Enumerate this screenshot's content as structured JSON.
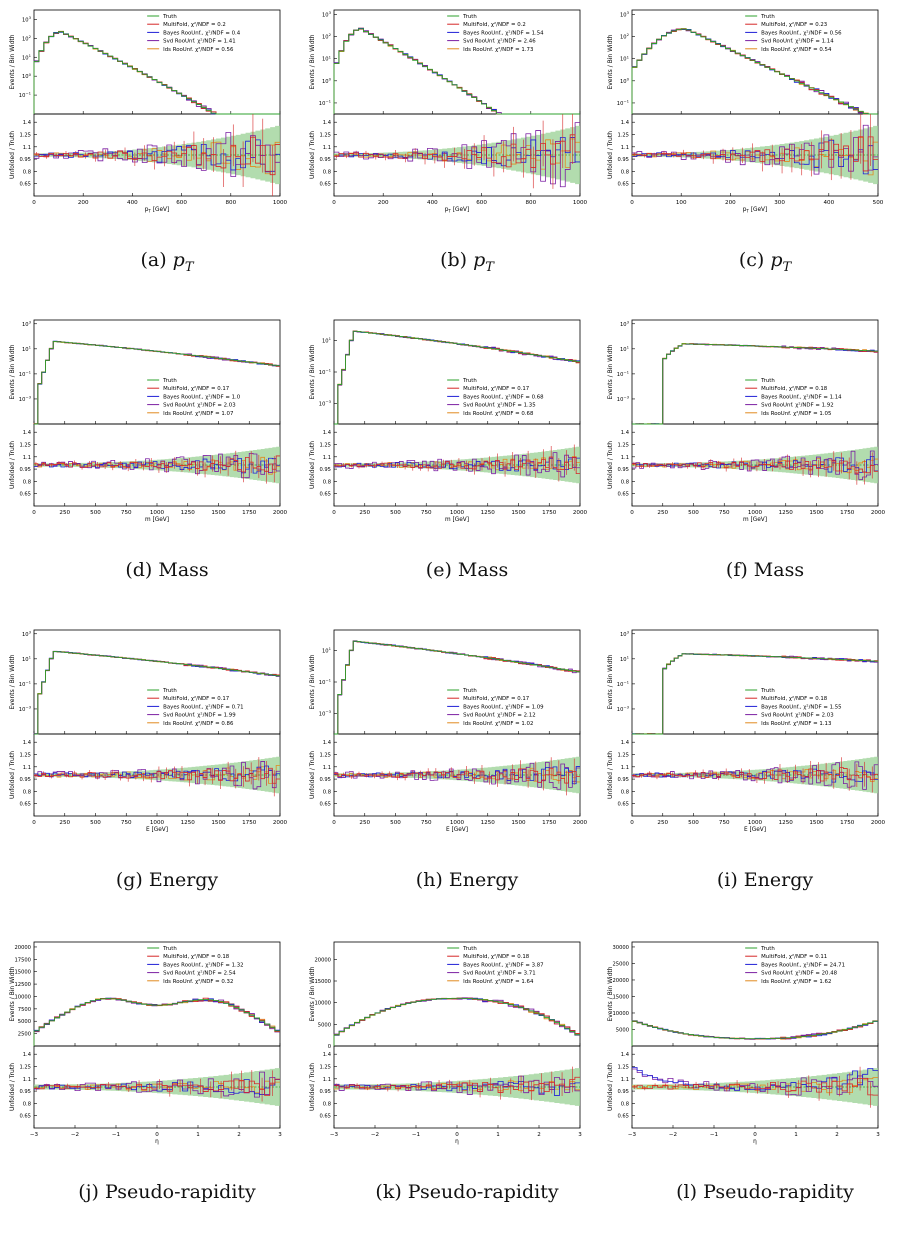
{
  "colors": {
    "truth": "#2ca02c",
    "multifold": "#d62728",
    "bayes": "#1f1fd6",
    "svd": "#7b1fa2",
    "ids": "#e08a1e",
    "band": "#9fd39a"
  },
  "chart_data": [
    {
      "id": "a",
      "type": "line",
      "caption_label": "(a) ",
      "caption_var": "p",
      "caption_sub": "T",
      "variable": "pt",
      "xlabel": "p_T [GeV]",
      "ylabel_top": "Events / Bin Width",
      "ylabel_bottom": "Unfolded / Truth",
      "xlim": [
        0,
        1000
      ],
      "xticks": [
        "0",
        "200",
        "400",
        "600",
        "800",
        "1000"
      ],
      "xtick_values": [
        0,
        200,
        400,
        600,
        800,
        1000
      ],
      "yscale": "log",
      "yticks": [
        "10^3",
        "10^2",
        "10^1",
        "10^0",
        "10^-1"
      ],
      "ylog_range": [
        -2,
        3.5
      ],
      "ratio_ticks": [
        "1.4",
        "1.25",
        "1.1",
        "0.95",
        "0.8",
        "0.65"
      ],
      "ratio_range": [
        0.5,
        1.5
      ],
      "legend_pos": "top-right",
      "series": [
        {
          "name": "Truth"
        },
        {
          "name": "MultiFold, χ²/NDF = 0.2"
        },
        {
          "name": "Bayes RooUnf., χ²/NDF = 0.4"
        },
        {
          "name": "Svd RooUnf. χ²/NDF = 1.41"
        },
        {
          "name": "Ids RooUnf. χ²/NDF = 0.56"
        }
      ]
    },
    {
      "id": "b",
      "type": "line",
      "caption_label": "(b) ",
      "caption_var": "p",
      "caption_sub": "T",
      "variable": "pt",
      "xlabel": "p_T [GeV]",
      "ylabel_top": "Events / Bin Width",
      "ylabel_bottom": "Unfolded / Truth",
      "xlim": [
        0,
        1000
      ],
      "xticks": [
        "0",
        "200",
        "400",
        "600",
        "800",
        "1000"
      ],
      "xtick_values": [
        0,
        200,
        400,
        600,
        800,
        1000
      ],
      "yscale": "log",
      "yticks": [
        "10^3",
        "10^2",
        "10^1",
        "10^0",
        "10^-1"
      ],
      "ylog_range": [
        -1.5,
        3.2
      ],
      "ratio_ticks": [
        "1.4",
        "1.25",
        "1.1",
        "0.95",
        "0.8",
        "0.65"
      ],
      "ratio_range": [
        0.5,
        1.5
      ],
      "legend_pos": "top-right",
      "series": [
        {
          "name": "Truth"
        },
        {
          "name": "MultiFold, χ²/NDF = 0.2"
        },
        {
          "name": "Bayes RooUnf., χ²/NDF = 1.54"
        },
        {
          "name": "Svd RooUnf. χ²/NDF = 2.46"
        },
        {
          "name": "Ids RooUnf. χ²/NDF = 1.73"
        }
      ]
    },
    {
      "id": "c",
      "type": "line",
      "caption_label": "(c) ",
      "caption_var": "p",
      "caption_sub": "T",
      "variable": "pt2",
      "xlabel": "p_T [GeV]",
      "ylabel_top": "Events / Bin Width",
      "ylabel_bottom": "Unfolded / Truth",
      "xlim": [
        0,
        500
      ],
      "xticks": [
        "0",
        "100",
        "200",
        "300",
        "400",
        "500"
      ],
      "xtick_values": [
        0,
        100,
        200,
        300,
        400,
        500
      ],
      "yscale": "log",
      "yticks": [
        "10^3",
        "10^2",
        "10^1",
        "10^0",
        "10^-1"
      ],
      "ylog_range": [
        -1.5,
        3.2
      ],
      "ratio_ticks": [
        "1.4",
        "1.25",
        "1.1",
        "0.95",
        "0.8",
        "0.65"
      ],
      "ratio_range": [
        0.5,
        1.5
      ],
      "legend_pos": "top-right",
      "series": [
        {
          "name": "Truth"
        },
        {
          "name": "MultiFold, χ²/NDF = 0.23"
        },
        {
          "name": "Bayes RooUnf., χ²/NDF = 0.56"
        },
        {
          "name": "Svd RooUnf. χ²/NDF = 1.14"
        },
        {
          "name": "Ids RooUnf. χ²/NDF = 0.54"
        }
      ]
    },
    {
      "id": "d",
      "type": "line",
      "caption_label": "(d) Mass",
      "caption_var": "",
      "caption_sub": "",
      "variable": "mass",
      "xlabel": "m [GeV]",
      "ylabel_top": "Events / Bin Width",
      "ylabel_bottom": "Unfolded / Truth",
      "xlim": [
        0,
        2000
      ],
      "xticks": [
        "0",
        "250",
        "500",
        "750",
        "1000",
        "1250",
        "1500",
        "1750",
        "2000"
      ],
      "xtick_values": [
        0,
        250,
        500,
        750,
        1000,
        1250,
        1500,
        1750,
        2000
      ],
      "yscale": "log",
      "yticks": [
        "10^3",
        "10^1",
        "10^-1",
        "10^-3"
      ],
      "ylog_range": [
        -5,
        3.3
      ],
      "ratio_ticks": [
        "1.4",
        "1.25",
        "1.1",
        "0.95",
        "0.8",
        "0.65"
      ],
      "ratio_range": [
        0.5,
        1.5
      ],
      "legend_pos": "lower-right",
      "series": [
        {
          "name": "Truth"
        },
        {
          "name": "MultiFold, χ²/NDF = 0.17"
        },
        {
          "name": "Bayes RooUnf., χ²/NDF = 1.0"
        },
        {
          "name": "Svd RooUnf. χ²/NDF = 2.03"
        },
        {
          "name": "Ids RooUnf. χ²/NDF = 1.07"
        }
      ]
    },
    {
      "id": "e",
      "type": "line",
      "caption_label": "(e) Mass",
      "caption_var": "",
      "caption_sub": "",
      "variable": "mass",
      "xlabel": "m [GeV]",
      "ylabel_top": "Events / Bin Width",
      "ylabel_bottom": "Unfolded / Truth",
      "xlim": [
        0,
        2000
      ],
      "xticks": [
        "0",
        "250",
        "500",
        "750",
        "1000",
        "1250",
        "1500",
        "1750",
        "2000"
      ],
      "xtick_values": [
        0,
        250,
        500,
        750,
        1000,
        1250,
        1500,
        1750,
        2000
      ],
      "yscale": "log",
      "yticks": [
        "10^1",
        "10^-1",
        "10^-3"
      ],
      "ylog_range": [
        -4.3,
        2.3
      ],
      "ratio_ticks": [
        "1.4",
        "1.25",
        "1.1",
        "0.95",
        "0.8",
        "0.65"
      ],
      "ratio_range": [
        0.5,
        1.5
      ],
      "legend_pos": "lower-right",
      "series": [
        {
          "name": "Truth"
        },
        {
          "name": "MultiFold, χ²/NDF = 0.17"
        },
        {
          "name": "Bayes RooUnf., χ²/NDF = 0.68"
        },
        {
          "name": "Svd RooUnf. χ²/NDF = 1.35"
        },
        {
          "name": "Ids RooUnf. χ²/NDF = 0.68"
        }
      ]
    },
    {
      "id": "f",
      "type": "line",
      "caption_label": "(f) Mass",
      "caption_var": "",
      "caption_sub": "",
      "variable": "mass2",
      "xlabel": "m [GeV]",
      "ylabel_top": "Events / Bin Width",
      "ylabel_bottom": "Unfolded / Truth",
      "xlim": [
        0,
        2000
      ],
      "xticks": [
        "0",
        "250",
        "500",
        "750",
        "1000",
        "1250",
        "1500",
        "1750",
        "2000"
      ],
      "xtick_values": [
        0,
        250,
        500,
        750,
        1000,
        1250,
        1500,
        1750,
        2000
      ],
      "yscale": "log",
      "yticks": [
        "10^3",
        "10^1",
        "10^-1",
        "10^-3"
      ],
      "ylog_range": [
        -5,
        3.3
      ],
      "ratio_ticks": [
        "1.4",
        "1.25",
        "1.1",
        "0.95",
        "0.8",
        "0.65"
      ],
      "ratio_range": [
        0.5,
        1.5
      ],
      "legend_pos": "lower-right",
      "series": [
        {
          "name": "Truth"
        },
        {
          "name": "MultiFold, χ²/NDF = 0.18"
        },
        {
          "name": "Bayes RooUnf., χ²/NDF = 1.14"
        },
        {
          "name": "Svd RooUnf. χ²/NDF = 1.92"
        },
        {
          "name": "Ids RooUnf. χ²/NDF = 1.05"
        }
      ]
    },
    {
      "id": "g",
      "type": "line",
      "caption_label": "(g) Energy",
      "caption_var": "",
      "caption_sub": "",
      "variable": "energy",
      "xlabel": "E [GeV]",
      "ylabel_top": "Events / Bin Width",
      "ylabel_bottom": "Unfolded / Truth",
      "xlim": [
        0,
        2000
      ],
      "xticks": [
        "0",
        "250",
        "500",
        "750",
        "1000",
        "1250",
        "1500",
        "1750",
        "2000"
      ],
      "xtick_values": [
        0,
        250,
        500,
        750,
        1000,
        1250,
        1500,
        1750,
        2000
      ],
      "yscale": "log",
      "yticks": [
        "10^3",
        "10^1",
        "10^-1",
        "10^-3"
      ],
      "ylog_range": [
        -5,
        3.3
      ],
      "ratio_ticks": [
        "1.4",
        "1.25",
        "1.1",
        "0.95",
        "0.8",
        "0.65"
      ],
      "ratio_range": [
        0.5,
        1.5
      ],
      "legend_pos": "lower-right",
      "series": [
        {
          "name": "Truth"
        },
        {
          "name": "MultiFold, χ²/NDF = 0.17"
        },
        {
          "name": "Bayes RooUnf., χ²/NDF = 0.71"
        },
        {
          "name": "Svd RooUnf. χ²/NDF = 1.99"
        },
        {
          "name": "Ids RooUnf. χ²/NDF = 0.86"
        }
      ]
    },
    {
      "id": "h",
      "type": "line",
      "caption_label": "(h) Energy",
      "caption_var": "",
      "caption_sub": "",
      "variable": "energy",
      "xlabel": "E [GeV]",
      "ylabel_top": "Events / Bin Width",
      "ylabel_bottom": "Unfolded / Truth",
      "xlim": [
        0,
        2000
      ],
      "xticks": [
        "0",
        "250",
        "500",
        "750",
        "1000",
        "1250",
        "1500",
        "1750",
        "2000"
      ],
      "xtick_values": [
        0,
        250,
        500,
        750,
        1000,
        1250,
        1500,
        1750,
        2000
      ],
      "yscale": "log",
      "yticks": [
        "10^1",
        "10^-1",
        "10^-3"
      ],
      "ylog_range": [
        -4.3,
        2.3
      ],
      "ratio_ticks": [
        "1.4",
        "1.25",
        "1.1",
        "0.95",
        "0.8",
        "0.65"
      ],
      "ratio_range": [
        0.5,
        1.5
      ],
      "legend_pos": "lower-right",
      "series": [
        {
          "name": "Truth"
        },
        {
          "name": "MultiFold, χ²/NDF = 0.17"
        },
        {
          "name": "Bayes RooUnf., χ²/NDF = 1.09"
        },
        {
          "name": "Svd RooUnf. χ²/NDF = 2.12"
        },
        {
          "name": "Ids RooUnf. χ²/NDF = 1.02"
        }
      ]
    },
    {
      "id": "i",
      "type": "line",
      "caption_label": "(i) Energy",
      "caption_var": "",
      "caption_sub": "",
      "variable": "energy2",
      "xlabel": "E [GeV]",
      "ylabel_top": "Events / Bin Width",
      "ylabel_bottom": "Unfolded / Truth",
      "xlim": [
        0,
        2000
      ],
      "xticks": [
        "0",
        "250",
        "500",
        "750",
        "1000",
        "1250",
        "1500",
        "1750",
        "2000"
      ],
      "xtick_values": [
        0,
        250,
        500,
        750,
        1000,
        1250,
        1500,
        1750,
        2000
      ],
      "yscale": "log",
      "yticks": [
        "10^3",
        "10^1",
        "10^-1",
        "10^-3"
      ],
      "ylog_range": [
        -5,
        3.3
      ],
      "ratio_ticks": [
        "1.4",
        "1.25",
        "1.1",
        "0.95",
        "0.8",
        "0.65"
      ],
      "ratio_range": [
        0.5,
        1.5
      ],
      "legend_pos": "lower-right",
      "series": [
        {
          "name": "Truth"
        },
        {
          "name": "MultiFold, χ²/NDF = 0.18"
        },
        {
          "name": "Bayes RooUnf., χ²/NDF = 1.55"
        },
        {
          "name": "Svd RooUnf. χ²/NDF = 2.03"
        },
        {
          "name": "Ids RooUnf. χ²/NDF = 1.13"
        }
      ]
    },
    {
      "id": "j",
      "type": "line",
      "caption_label": "(j) Pseudo-rapidity",
      "caption_var": "",
      "caption_sub": "",
      "variable": "eta",
      "xlabel": "η",
      "ylabel_top": "Events / Bin Width",
      "ylabel_bottom": "Unfolded / Truth",
      "xlim": [
        -3,
        3
      ],
      "xticks": [
        "−3",
        "−2",
        "−1",
        "0",
        "1",
        "2",
        "3"
      ],
      "xtick_values": [
        -3,
        -2,
        -1,
        0,
        1,
        2,
        3
      ],
      "yscale": "linear",
      "yticks": [
        "20000",
        "17500",
        "15000",
        "12500",
        "10000",
        "7500",
        "5000",
        "2500"
      ],
      "ylin_range": [
        0,
        21000
      ],
      "ratio_ticks": [
        "1.4",
        "1.25",
        "1.1",
        "0.95",
        "0.8",
        "0.65"
      ],
      "ratio_range": [
        0.5,
        1.5
      ],
      "legend_pos": "top-right",
      "series": [
        {
          "name": "Truth"
        },
        {
          "name": "MultiFold, χ²/NDF = 0.18"
        },
        {
          "name": "Bayes RooUnf., χ²/NDF = 1.32"
        },
        {
          "name": "Svd RooUnf. χ²/NDF = 2.54"
        },
        {
          "name": "Ids RooUnf. χ²/NDF = 0.32"
        }
      ]
    },
    {
      "id": "k",
      "type": "line",
      "caption_label": "(k) Pseudo-rapidity",
      "caption_var": "",
      "caption_sub": "",
      "variable": "eta2",
      "xlabel": "η",
      "ylabel_top": "Events / Bin Width",
      "ylabel_bottom": "Unfolded / Truth",
      "xlim": [
        -3,
        3
      ],
      "xticks": [
        "−3",
        "−2",
        "−1",
        "0",
        "1",
        "2",
        "3"
      ],
      "xtick_values": [
        -3,
        -2,
        -1,
        0,
        1,
        2,
        3
      ],
      "yscale": "linear",
      "yticks": [
        "20000",
        "15000",
        "10000",
        "5000",
        "0"
      ],
      "ylin_range": [
        0,
        24000
      ],
      "ratio_ticks": [
        "1.4",
        "1.25",
        "1.1",
        "0.95",
        "0.8",
        "0.65"
      ],
      "ratio_range": [
        0.5,
        1.5
      ],
      "legend_pos": "top-right",
      "series": [
        {
          "name": "Truth"
        },
        {
          "name": "MultiFold, χ²/NDF = 0.18"
        },
        {
          "name": "Bayes RooUnf., χ²/NDF = 3.87"
        },
        {
          "name": "Svd RooUnf. χ²/NDF = 3.71"
        },
        {
          "name": "Ids RooUnf. χ²/NDF = 1.64"
        }
      ]
    },
    {
      "id": "l",
      "type": "line",
      "caption_label": "(l) Pseudo-rapidity",
      "caption_var": "",
      "caption_sub": "",
      "variable": "eta3",
      "xlabel": "η",
      "ylabel_top": "Events / Bin Width",
      "ylabel_bottom": "Unfolded / Truth",
      "xlim": [
        -3,
        3
      ],
      "xticks": [
        "−3",
        "−2",
        "−1",
        "0",
        "1",
        "2",
        "3"
      ],
      "xtick_values": [
        -3,
        -2,
        -1,
        0,
        1,
        2,
        3
      ],
      "yscale": "linear",
      "yticks": [
        "30000",
        "25000",
        "20000",
        "15000",
        "10000",
        "5000"
      ],
      "ylin_range": [
        0,
        31500
      ],
      "ratio_ticks": [
        "1.4",
        "1.25",
        "1.1",
        "0.95",
        "0.8",
        "0.65"
      ],
      "ratio_range": [
        0.5,
        1.5
      ],
      "legend_pos": "top-right",
      "series": [
        {
          "name": "Truth"
        },
        {
          "name": "MultiFold, χ²/NDF = 0.11"
        },
        {
          "name": "Bayes RooUnf., χ²/NDF = 24.71"
        },
        {
          "name": "Svd RooUnf. χ²/NDF = 20.48"
        },
        {
          "name": "Ids RooUnf. χ²/NDF = 1.62"
        }
      ]
    }
  ]
}
